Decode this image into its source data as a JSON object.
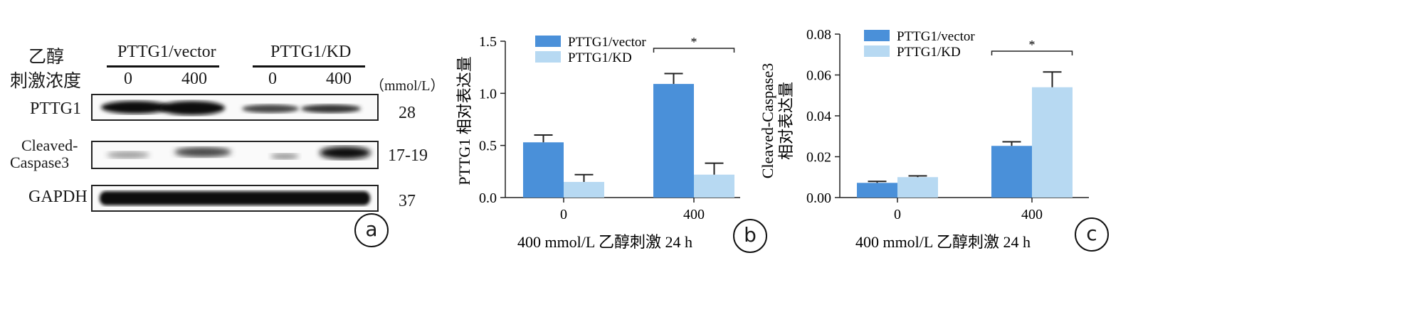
{
  "panel_a": {
    "row_header_line1": "乙醇",
    "row_header_line2": "刺激浓度",
    "group1": "PTTG1/vector",
    "group2": "PTTG1/KD",
    "lanes": [
      "0",
      "400",
      "0",
      "400"
    ],
    "unit": "（mmol/L）",
    "blots": [
      {
        "name": "PTTG1",
        "size": "28"
      },
      {
        "name_line1": "Cleaved-",
        "name_line2": "Caspase3",
        "size": "17-19"
      },
      {
        "name": "GAPDH",
        "size": "37"
      }
    ],
    "letter": "a"
  },
  "panel_b": {
    "letter": "b"
  },
  "panel_c": {
    "letter": "c"
  },
  "colors": {
    "vector": "#4a90d9",
    "kd": "#b7d9f2"
  },
  "chart_data": [
    {
      "type": "bar",
      "title": "",
      "ylabel": "PTTG1 相对表达量",
      "xlabel": "400 mmol/L  乙醇刺激 24 h",
      "categories": [
        "0",
        "400"
      ],
      "ylim": [
        0,
        1.5
      ],
      "yticks": [
        "0.0",
        "0.5",
        "1.0",
        "1.5"
      ],
      "ytick_values": [
        0,
        0.5,
        1.0,
        1.5
      ],
      "series": [
        {
          "name": "PTTG1/vector",
          "values": [
            0.53,
            1.09
          ],
          "errors": [
            0.07,
            0.1
          ]
        },
        {
          "name": "PTTG1/KD",
          "values": [
            0.15,
            0.22
          ],
          "errors": [
            0.07,
            0.11
          ]
        }
      ],
      "significance": {
        "category": "400",
        "label": "*"
      },
      "legend": "top-left"
    },
    {
      "type": "bar",
      "title": "",
      "ylabel_line1": "Cleaved-Caspase3",
      "ylabel_line2": "相对表达量",
      "xlabel": "400 mmol/L  乙醇刺激 24 h",
      "categories": [
        "0",
        "400"
      ],
      "ylim": [
        0,
        0.08
      ],
      "yticks": [
        "0.00",
        "0.02",
        "0.04",
        "0.06",
        "0.08"
      ],
      "ytick_values": [
        0,
        0.02,
        0.04,
        0.06,
        0.08
      ],
      "series": [
        {
          "name": "PTTG1/vector",
          "values": [
            0.0072,
            0.0253
          ],
          "errors": [
            0.0007,
            0.002
          ]
        },
        {
          "name": "PTTG1/KD",
          "values": [
            0.01,
            0.054
          ],
          "errors": [
            0.0006,
            0.0075
          ]
        }
      ],
      "significance": {
        "category": "400",
        "label": "*"
      },
      "legend": "top-left"
    }
  ]
}
